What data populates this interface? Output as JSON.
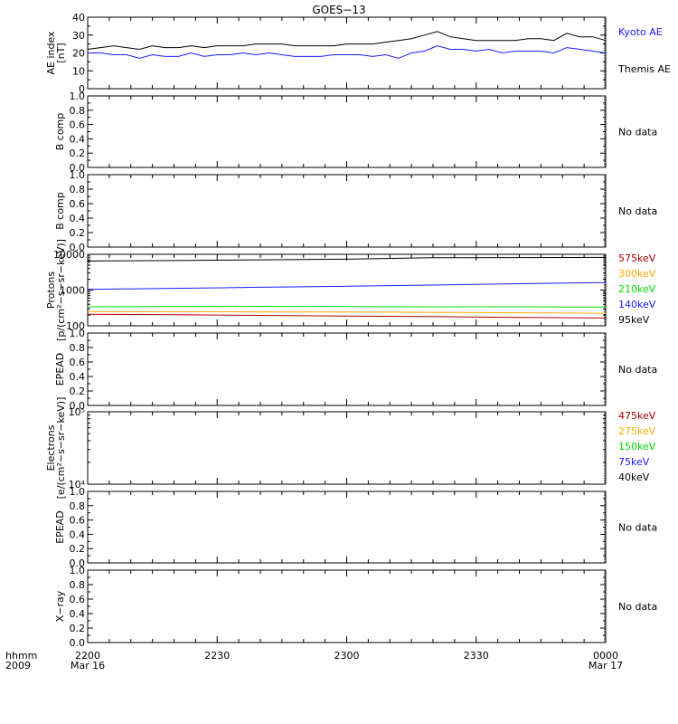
{
  "title": "GOES−13",
  "time_axis": {
    "corner_labels": [
      "hhmm",
      "2009"
    ],
    "start_minutes": 0,
    "end_minutes": 120,
    "ticks": [
      {
        "t": 0,
        "label": "2200",
        "sub": "Mar 16"
      },
      {
        "t": 30,
        "label": "2230",
        "sub": ""
      },
      {
        "t": 60,
        "label": "2300",
        "sub": ""
      },
      {
        "t": 90,
        "label": "2330",
        "sub": ""
      },
      {
        "t": 120,
        "label": "0000",
        "sub": "Mar 17"
      }
    ]
  },
  "colors": {
    "black": "#000000",
    "blue": "#1a1aff",
    "green": "#00dd00",
    "orange": "#ffaa00",
    "darkred": "#aa0000"
  },
  "chart_data": [
    {
      "type": "line",
      "id": "ae",
      "ylabel": [
        "AE index",
        "[nT]"
      ],
      "ylim": [
        0,
        40
      ],
      "yticks": [
        0,
        10,
        20,
        30,
        40
      ],
      "ytick_labels": [
        "0",
        "10",
        "20",
        "30",
        "40"
      ],
      "scale": "linear",
      "legend": [
        {
          "name": "Kyoto AE",
          "color": "#1a1aff"
        },
        {
          "name": "Themis AE",
          "color": "#000000"
        }
      ],
      "series": [
        {
          "name": "Kyoto AE",
          "color": "#1a1aff",
          "x": [
            0,
            3,
            6,
            9,
            12,
            15,
            18,
            21,
            24,
            27,
            30,
            33,
            36,
            39,
            42,
            45,
            48,
            51,
            54,
            57,
            60,
            63,
            66,
            69,
            72,
            75,
            78,
            81,
            84,
            87,
            90,
            93,
            96,
            99,
            102,
            105,
            108,
            111,
            114,
            117,
            120
          ],
          "y": [
            20,
            20,
            19,
            19,
            17,
            19,
            18,
            18,
            20,
            18,
            19,
            19,
            20,
            19,
            20,
            19,
            18,
            18,
            18,
            19,
            19,
            19,
            18,
            19,
            17,
            20,
            21,
            24,
            22,
            22,
            21,
            22,
            20,
            21,
            21,
            21,
            20,
            23,
            22,
            21,
            20
          ]
        },
        {
          "name": "Themis AE",
          "color": "#000000",
          "x": [
            0,
            3,
            6,
            9,
            12,
            15,
            18,
            21,
            24,
            27,
            30,
            33,
            36,
            39,
            42,
            45,
            48,
            51,
            54,
            57,
            60,
            63,
            66,
            69,
            72,
            75,
            78,
            81,
            84,
            87,
            90,
            93,
            96,
            99,
            102,
            105,
            108,
            111,
            114,
            117,
            120
          ],
          "y": [
            22,
            23,
            24,
            23,
            22,
            24,
            23,
            23,
            24,
            23,
            24,
            24,
            24,
            25,
            25,
            25,
            24,
            24,
            24,
            24,
            25,
            25,
            25,
            26,
            27,
            28,
            30,
            32,
            29,
            28,
            27,
            27,
            27,
            27,
            28,
            28,
            27,
            31,
            29,
            29,
            27
          ]
        }
      ]
    },
    {
      "type": "line",
      "id": "bcomp1",
      "ylabel": [
        "B comp"
      ],
      "ylim": [
        0,
        1
      ],
      "yticks": [
        0,
        0.2,
        0.4,
        0.6,
        0.8,
        1.0
      ],
      "ytick_labels": [
        "0.0",
        "0.2",
        "0.4",
        "0.6",
        "0.8",
        "1.0"
      ],
      "scale": "linear",
      "no_data_text": "No data",
      "series": []
    },
    {
      "type": "line",
      "id": "bcomp2",
      "ylabel": [
        "B comp"
      ],
      "ylim": [
        0,
        1
      ],
      "yticks": [
        0,
        0.2,
        0.4,
        0.6,
        0.8,
        1.0
      ],
      "ytick_labels": [
        "0.0",
        "0.2",
        "0.4",
        "0.6",
        "0.8",
        "1.0"
      ],
      "scale": "linear",
      "no_data_text": "No data",
      "series": []
    },
    {
      "type": "line",
      "id": "protons",
      "ylabel": [
        "Protons",
        "[p/(cm²−s−sr−keV)]"
      ],
      "ylim": [
        100,
        10000
      ],
      "yticks": [
        100,
        1000,
        10000
      ],
      "ytick_labels": [
        "100",
        "1000",
        "10000"
      ],
      "scale": "log",
      "legend": [
        {
          "name": "575keV",
          "color": "#aa0000"
        },
        {
          "name": "300keV",
          "color": "#ffaa00"
        },
        {
          "name": "210keV",
          "color": "#00dd00"
        },
        {
          "name": "140keV",
          "color": "#1a1aff"
        },
        {
          "name": "95keV",
          "color": "#000000"
        }
      ],
      "series": [
        {
          "name": "95keV",
          "color": "#000000",
          "x": [
            0,
            20,
            40,
            60,
            80,
            100,
            120
          ],
          "y": [
            6500,
            6700,
            7000,
            7300,
            8000,
            8100,
            8200
          ]
        },
        {
          "name": "140keV",
          "color": "#1a1aff",
          "x": [
            0,
            20,
            40,
            60,
            80,
            100,
            120
          ],
          "y": [
            1050,
            1120,
            1200,
            1280,
            1380,
            1500,
            1620
          ]
        },
        {
          "name": "210keV",
          "color": "#00dd00",
          "x": [
            0,
            20,
            40,
            60,
            80,
            100,
            120
          ],
          "y": [
            340,
            345,
            350,
            345,
            340,
            340,
            335
          ]
        },
        {
          "name": "300keV",
          "color": "#ffaa00",
          "x": [
            0,
            20,
            40,
            60,
            80,
            100,
            120
          ],
          "y": [
            250,
            248,
            245,
            242,
            238,
            232,
            225
          ]
        },
        {
          "name": "575keV",
          "color": "#aa0000",
          "x": [
            0,
            20,
            40,
            60,
            80,
            100,
            120
          ],
          "y": [
            210,
            205,
            195,
            188,
            180,
            172,
            165
          ]
        }
      ]
    },
    {
      "type": "line",
      "id": "epead1",
      "ylabel": [
        "EPEAD"
      ],
      "ylim": [
        0,
        1
      ],
      "yticks": [
        0,
        0.2,
        0.4,
        0.6,
        0.8,
        1.0
      ],
      "ytick_labels": [
        "0.0",
        "0.2",
        "0.4",
        "0.6",
        "0.8",
        "1.0"
      ],
      "scale": "linear",
      "no_data_text": "No data",
      "series": []
    },
    {
      "type": "line",
      "id": "electrons",
      "ylabel": [
        "Electrons",
        "[e/(cm²−s−sr−keV)]"
      ],
      "ylim": [
        10000,
        100000
      ],
      "yticks": [
        10000,
        100000
      ],
      "ytick_labels": [
        "10⁴",
        "10⁵"
      ],
      "scale": "log",
      "legend": [
        {
          "name": "475keV",
          "color": "#aa0000"
        },
        {
          "name": "275keV",
          "color": "#ffaa00"
        },
        {
          "name": "150keV",
          "color": "#00dd00"
        },
        {
          "name": "75keV",
          "color": "#1a1aff"
        },
        {
          "name": "40keV",
          "color": "#000000"
        }
      ],
      "series": []
    },
    {
      "type": "line",
      "id": "epead2",
      "ylabel": [
        "EPEAD"
      ],
      "ylim": [
        0,
        1
      ],
      "yticks": [
        0,
        0.2,
        0.4,
        0.6,
        0.8,
        1.0
      ],
      "ytick_labels": [
        "0.0",
        "0.2",
        "0.4",
        "0.6",
        "0.8",
        "1.0"
      ],
      "scale": "linear",
      "no_data_text": "No data",
      "series": []
    },
    {
      "type": "line",
      "id": "xray",
      "ylabel": [
        "X−ray"
      ],
      "ylim": [
        0,
        1
      ],
      "yticks": [
        0,
        0.2,
        0.4,
        0.6,
        0.8,
        1.0
      ],
      "ytick_labels": [
        "0.0",
        "0.2",
        "0.4",
        "0.6",
        "0.8",
        "1.0"
      ],
      "scale": "linear",
      "no_data_text": "No data",
      "series": []
    }
  ]
}
